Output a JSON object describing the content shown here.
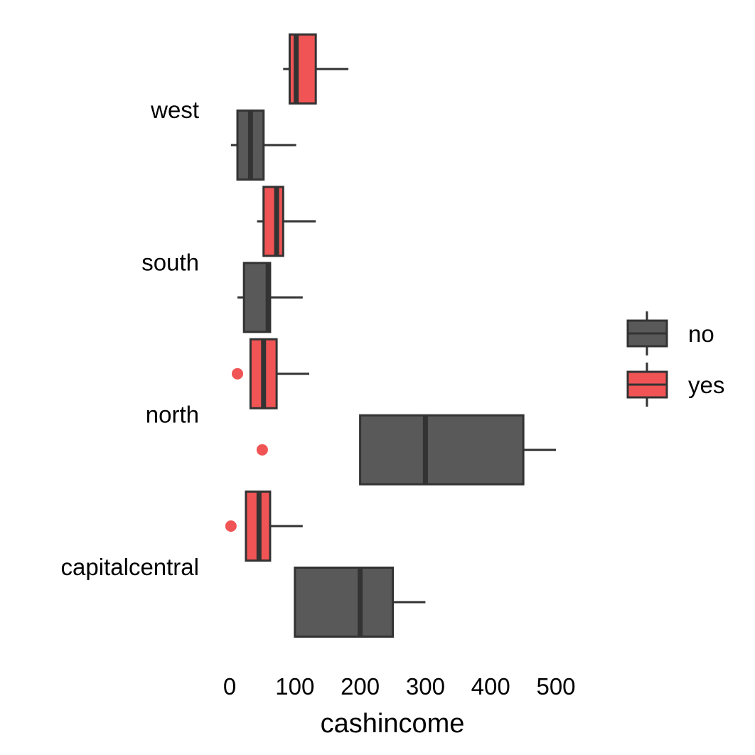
{
  "chart_data": {
    "type": "boxplot",
    "orientation": "horizontal",
    "title": "",
    "xlabel": "cashincome",
    "ylabel": "",
    "xlim": [
      0,
      500
    ],
    "x_ticks": [
      0,
      100,
      200,
      300,
      400,
      500
    ],
    "categories": [
      "capitalcentral",
      "north",
      "south",
      "west"
    ],
    "grid": false,
    "legend_position": "right",
    "series": [
      {
        "name": "no",
        "color": "#595959",
        "boxes": [
          {
            "category": "capitalcentral",
            "min": 100,
            "q1": 100,
            "median": 200,
            "q3": 250,
            "max": 300,
            "outliers": []
          },
          {
            "category": "north",
            "min": 200,
            "q1": 200,
            "median": 300,
            "q3": 450,
            "max": 500,
            "outliers": [
              50
            ]
          },
          {
            "category": "south",
            "min": 12,
            "q1": 22,
            "median": 59,
            "q3": 62,
            "max": 112,
            "outliers": []
          },
          {
            "category": "west",
            "min": 2,
            "q1": 12,
            "median": 32,
            "q3": 52,
            "max": 102,
            "outliers": []
          }
        ]
      },
      {
        "name": "yes",
        "color": "#F05454",
        "boxes": [
          {
            "category": "capitalcentral",
            "min": 25,
            "q1": 25,
            "median": 45,
            "q3": 62,
            "max": 112,
            "outliers": [
              2
            ]
          },
          {
            "category": "north",
            "min": 32,
            "q1": 32,
            "median": 52,
            "q3": 72,
            "max": 122,
            "outliers": [
              12
            ]
          },
          {
            "category": "south",
            "min": 42,
            "q1": 52,
            "median": 72,
            "q3": 82,
            "max": 132,
            "outliers": []
          },
          {
            "category": "west",
            "min": 82,
            "q1": 92,
            "median": 102,
            "q3": 132,
            "max": 182,
            "outliers": []
          }
        ]
      }
    ]
  }
}
